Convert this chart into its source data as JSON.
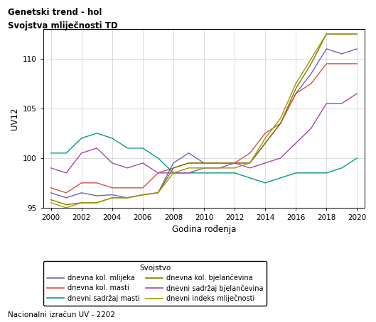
{
  "title_line1": "Genetski trend - hol",
  "title_line2": "Svojstva mliječnosti TD",
  "xlabel": "Godina rođenja",
  "ylabel": "UV12",
  "footnote": "Nacionalni izračun UV - 2202",
  "legend_title": "Svojstvo",
  "xlim": [
    1999.5,
    2020.5
  ],
  "ylim": [
    95,
    113
  ],
  "xticks": [
    2000,
    2002,
    2004,
    2006,
    2008,
    2010,
    2012,
    2014,
    2016,
    2018,
    2020
  ],
  "yticks": [
    95,
    100,
    105,
    110
  ],
  "years": [
    2000,
    2001,
    2002,
    2003,
    2004,
    2005,
    2006,
    2007,
    2008,
    2009,
    2010,
    2011,
    2012,
    2013,
    2014,
    2015,
    2016,
    2017,
    2018,
    2019,
    2020
  ],
  "series": [
    {
      "name": "dnevna kol. mlijeka",
      "color": "#6666bb",
      "values": [
        96.5,
        96.0,
        96.5,
        96.2,
        96.3,
        96.0,
        96.3,
        96.5,
        99.5,
        100.5,
        99.5,
        99.5,
        99.5,
        99.5,
        101.5,
        103.5,
        106.5,
        108.5,
        111.0,
        110.5,
        111.0
      ]
    },
    {
      "name": "dnevna kol. masti",
      "color": "#cc5544",
      "values": [
        97.0,
        96.5,
        97.5,
        97.5,
        97.0,
        97.0,
        97.0,
        98.5,
        99.0,
        99.5,
        99.5,
        99.5,
        99.5,
        100.5,
        102.5,
        103.5,
        106.5,
        107.5,
        109.5,
        109.5,
        109.5
      ]
    },
    {
      "name": "dnevni sadržaj masti",
      "color": "#009988",
      "values": [
        100.5,
        100.5,
        102.0,
        102.5,
        102.0,
        101.0,
        101.0,
        100.0,
        98.5,
        98.5,
        98.5,
        98.5,
        98.5,
        98.0,
        97.5,
        98.0,
        98.5,
        98.5,
        98.5,
        99.0,
        100.0
      ]
    },
    {
      "name": "dnevna kol. bjelančevina",
      "color": "#887700",
      "values": [
        95.8,
        95.3,
        95.5,
        95.5,
        96.0,
        96.0,
        96.3,
        96.5,
        99.0,
        99.5,
        99.5,
        99.5,
        99.5,
        99.5,
        101.5,
        103.5,
        107.0,
        109.5,
        112.5,
        112.5,
        112.5
      ]
    },
    {
      "name": "dnevni sadržaj bjelančevina",
      "color": "#aa44aa",
      "values": [
        99.0,
        98.5,
        100.5,
        101.0,
        99.5,
        99.0,
        99.5,
        98.5,
        98.5,
        98.5,
        99.0,
        99.0,
        99.5,
        99.0,
        99.5,
        100.0,
        101.5,
        103.0,
        105.5,
        105.5,
        106.5
      ]
    },
    {
      "name": "dnevni indeks mliječnosti",
      "color": "#999900",
      "values": [
        95.5,
        95.0,
        95.5,
        95.5,
        96.0,
        96.0,
        96.3,
        96.5,
        98.5,
        99.0,
        99.0,
        99.0,
        99.0,
        99.5,
        102.0,
        104.0,
        107.5,
        110.0,
        112.5,
        112.5,
        112.5
      ]
    }
  ],
  "legend_order": [
    "dnevna kol. mlijeka",
    "dnevna kol. masti",
    "dnevni sadržaj masti",
    "dnevna kol. bjelančevina",
    "dnevni sadržaj bjelančevina",
    "dnevni indeks mliječnosti"
  ]
}
